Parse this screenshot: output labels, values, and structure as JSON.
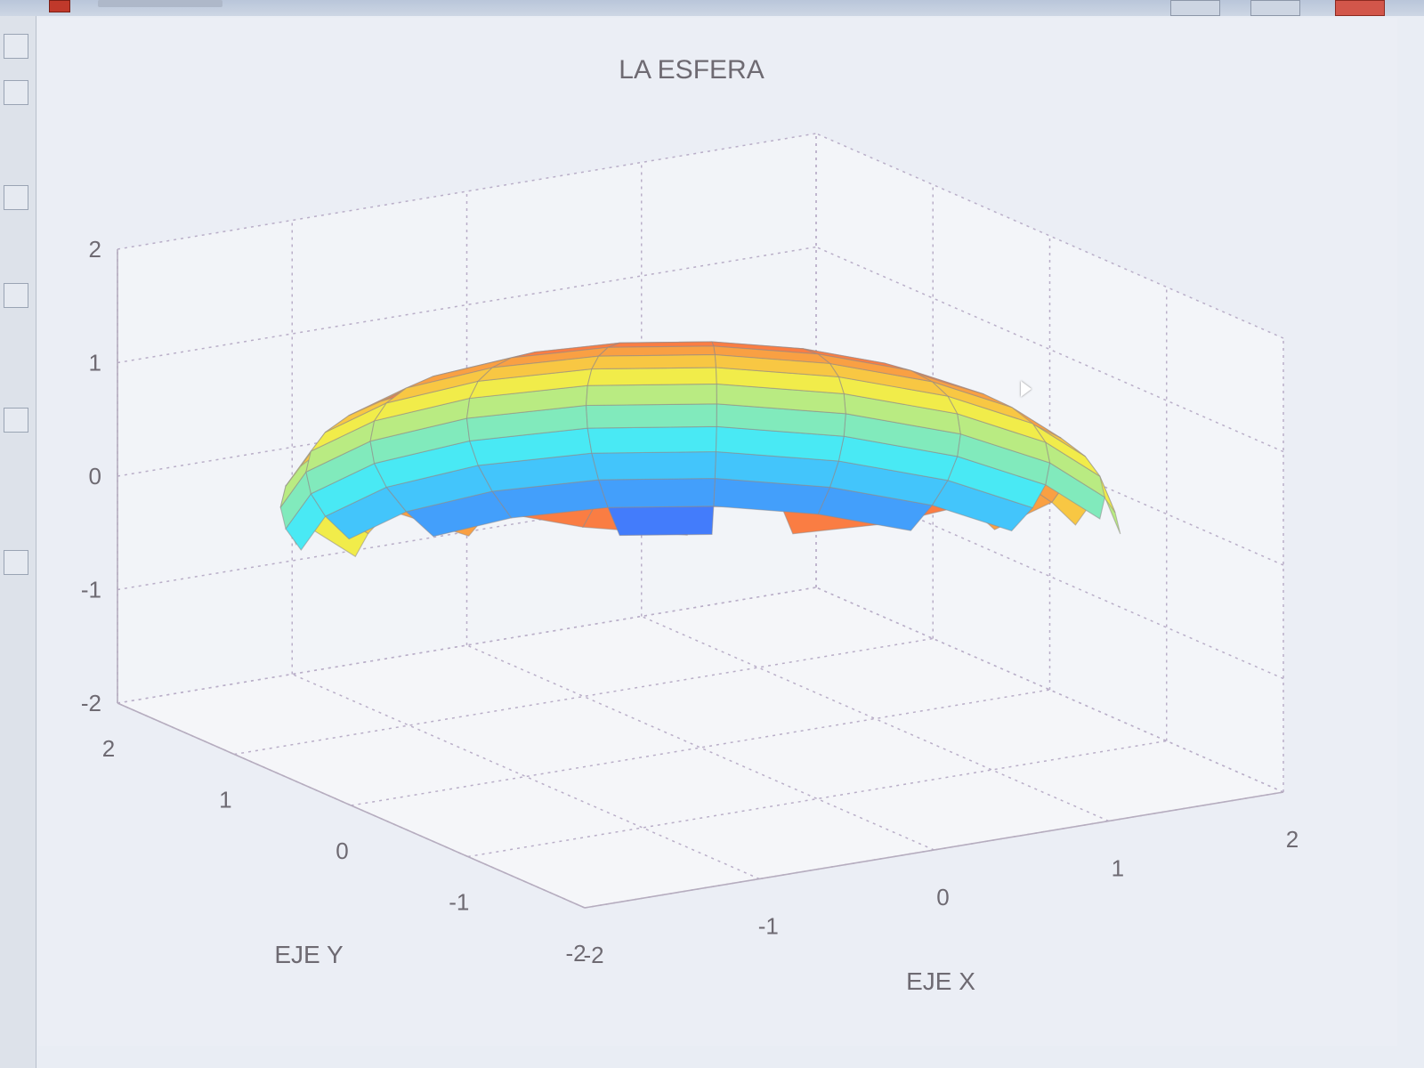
{
  "window": {
    "buttons": [
      {
        "name": "minimize-button"
      },
      {
        "name": "maximize-button"
      },
      {
        "name": "close-button"
      }
    ]
  },
  "toolbar": {
    "tools": [
      "zoom-icon",
      "pan-icon",
      "rotate-icon",
      "datacursor-icon",
      "colorbar-icon",
      "legend-icon"
    ]
  },
  "chart_data": {
    "type": "surface3d",
    "surface": "ellipsoid",
    "semi_axes": {
      "x": 2,
      "y": 2,
      "z": 1.2
    },
    "center": [
      0,
      0,
      0
    ],
    "title": "LA ESFERA",
    "xlabel": "EJE X",
    "ylabel": "EJE Y",
    "zlabel": "",
    "xlim": [
      -2,
      2
    ],
    "ylim": [
      -2,
      2
    ],
    "zlim": [
      -2,
      2
    ],
    "xticks": [
      "-2",
      "-1",
      "0",
      "1",
      "2"
    ],
    "yticks": [
      "-2",
      "-1",
      "0",
      "1",
      "2"
    ],
    "zticks": [
      "-2",
      "-1",
      "0",
      "1",
      "2"
    ],
    "grid": true,
    "colormap": "jet",
    "colors": {
      "jet_low": "#1e9fdc",
      "jet_mid_low": "#3fd9dd",
      "jet_mid": "#f4e070",
      "jet_mid_high": "#f7884a",
      "jet_high": "#a8303a"
    }
  }
}
